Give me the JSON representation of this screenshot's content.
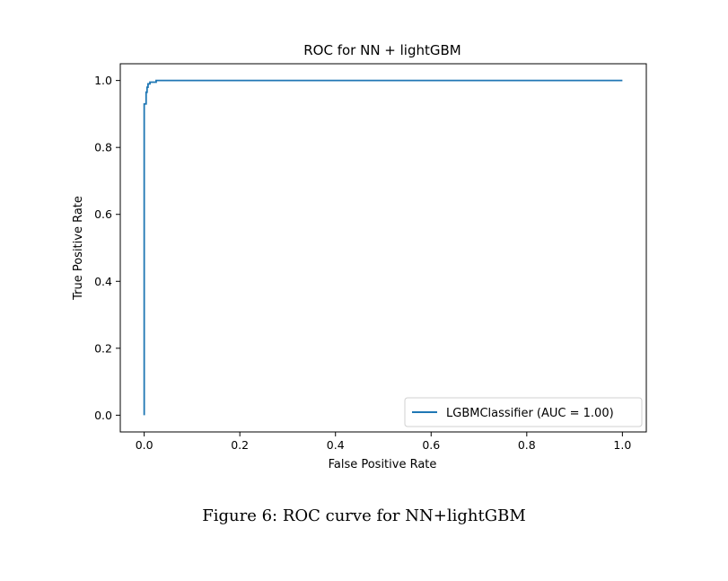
{
  "chart_data": {
    "type": "line",
    "title": "ROC for NN + lightGBM",
    "xlabel": "False Positive Rate",
    "ylabel": "True Positive Rate",
    "xlim": [
      -0.05,
      1.05
    ],
    "ylim": [
      -0.05,
      1.05
    ],
    "xticks": [
      "0.0",
      "0.2",
      "0.4",
      "0.6",
      "0.8",
      "1.0"
    ],
    "yticks": [
      "0.0",
      "0.2",
      "0.4",
      "0.6",
      "0.8",
      "1.0"
    ],
    "grid": false,
    "legend_position": "lower-right",
    "series": [
      {
        "name": "LGBMClassifier (AUC = 1.00)",
        "color": "#1f77b4",
        "x": [
          0.0,
          0.0,
          0.0,
          0.004,
          0.004,
          0.006,
          0.006,
          0.008,
          0.008,
          0.012,
          0.012,
          0.025,
          0.025,
          1.0
        ],
        "y": [
          0.0,
          0.93,
          0.93,
          0.93,
          0.965,
          0.965,
          0.98,
          0.98,
          0.99,
          0.99,
          0.995,
          0.995,
          1.0,
          1.0
        ]
      }
    ]
  },
  "caption": "Figure 6: ROC curve for NN+lightGBM"
}
